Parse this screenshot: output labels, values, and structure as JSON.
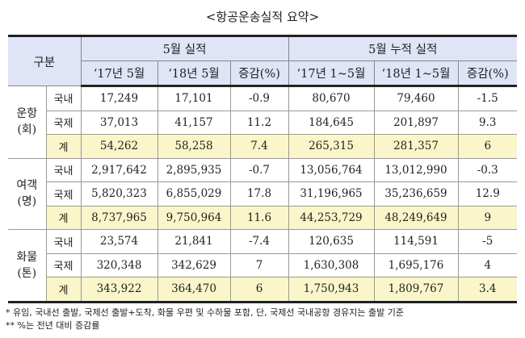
{
  "title": "<항공운송실적 요약>",
  "header": {
    "category": "구분",
    "group_month": "5월 실적",
    "group_cumulative": "5월 누적 실적",
    "columns": [
      "‘17년 5월",
      "‘18년 5월",
      "증감(%)",
      "‘17년 1~5월",
      "‘18년 1~5월",
      "증감(%)"
    ]
  },
  "groups": [
    {
      "label": "운항\n(회)",
      "rows": [
        {
          "sub": "국내",
          "values": [
            "17,249",
            "17,101",
            "-0.9",
            "80,670",
            "79,460",
            "-1.5"
          ]
        },
        {
          "sub": "국제",
          "values": [
            "37,013",
            "41,157",
            "11.2",
            "184,645",
            "201,897",
            "9.3"
          ]
        },
        {
          "sub": "계",
          "values": [
            "54,262",
            "58,258",
            "7.4",
            "265,315",
            "281,357",
            "6"
          ]
        }
      ]
    },
    {
      "label": "여객\n(명)",
      "rows": [
        {
          "sub": "국내",
          "values": [
            "2,917,642",
            "2,895,935",
            "-0.7",
            "13,056,764",
            "13,012,990",
            "-0.3"
          ]
        },
        {
          "sub": "국제",
          "values": [
            "5,820,323",
            "6,855,029",
            "17.8",
            "31,196,965",
            "35,236,659",
            "12.9"
          ]
        },
        {
          "sub": "계",
          "values": [
            "8,737,965",
            "9,750,964",
            "11.6",
            "44,253,729",
            "48,249,649",
            "9"
          ]
        }
      ]
    },
    {
      "label": "화물\n(톤)",
      "rows": [
        {
          "sub": "국내",
          "values": [
            "23,574",
            "21,841",
            "-7.4",
            "120,635",
            "114,591",
            "-5"
          ]
        },
        {
          "sub": "국제",
          "values": [
            "320,348",
            "342,629",
            "7",
            "1,630,308",
            "1,695,176",
            "4"
          ]
        },
        {
          "sub": "계",
          "values": [
            "343,922",
            "364,470",
            "6",
            "1,750,943",
            "1,809,767",
            "3.4"
          ]
        }
      ]
    }
  ],
  "notes": [
    "* 유임, 국내선 출발, 국제선 출발+도착, 화물 우편 및 수하물 포함, 단, 국제선 국내공항 경유지는 출발 기준",
    "** %는 전년 대비 증감률"
  ]
}
